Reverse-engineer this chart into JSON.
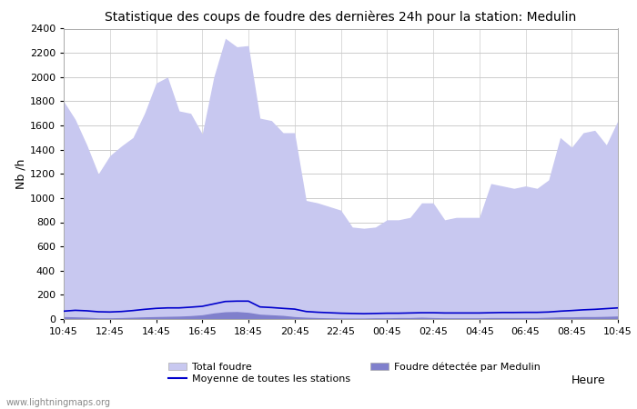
{
  "title": "Statistique des coups de foudre des dernières 24h pour la station: Medulin",
  "ylabel": "Nb /h",
  "xlabel": "Heure",
  "watermark": "www.lightningmaps.org",
  "x_labels": [
    "10:45",
    "12:45",
    "14:45",
    "16:45",
    "18:45",
    "20:45",
    "22:45",
    "00:45",
    "02:45",
    "04:45",
    "06:45",
    "08:45",
    "10:45"
  ],
  "ylim": [
    0,
    2400
  ],
  "yticks": [
    0,
    200,
    400,
    600,
    800,
    1000,
    1200,
    1400,
    1600,
    1800,
    2000,
    2200,
    2400
  ],
  "total_foudre": [
    1800,
    1650,
    1440,
    1200,
    1350,
    1430,
    1500,
    1700,
    1950,
    2000,
    1720,
    1700,
    1530,
    2000,
    2320,
    2250,
    2260,
    1660,
    1640,
    1540,
    1540,
    980,
    960,
    930,
    900,
    760,
    750,
    760,
    820,
    820,
    840,
    960,
    960,
    820,
    840,
    840,
    840,
    1120,
    1100,
    1080,
    1100,
    1080,
    1150,
    1500,
    1420,
    1540,
    1560,
    1440,
    1640
  ],
  "foudre_medulin": [
    20,
    18,
    15,
    10,
    10,
    12,
    15,
    18,
    20,
    22,
    24,
    28,
    35,
    50,
    60,
    62,
    55,
    40,
    35,
    30,
    20,
    15,
    12,
    10,
    8,
    8,
    8,
    10,
    10,
    12,
    12,
    15,
    12,
    10,
    10,
    10,
    10,
    12,
    12,
    12,
    12,
    12,
    15,
    18,
    18,
    20,
    20,
    22,
    25
  ],
  "moyenne_stations": [
    65,
    72,
    68,
    60,
    58,
    62,
    70,
    80,
    88,
    92,
    92,
    98,
    105,
    125,
    145,
    148,
    148,
    100,
    95,
    88,
    82,
    62,
    56,
    52,
    48,
    46,
    44,
    46,
    48,
    48,
    50,
    52,
    52,
    50,
    50,
    50,
    50,
    52,
    54,
    54,
    55,
    55,
    58,
    65,
    70,
    76,
    80,
    86,
    92
  ],
  "color_total": "#c8c8f0",
  "color_total_edge": "#c8c8f0",
  "color_medulin": "#8080cc",
  "color_moyenne": "#0000cc",
  "color_bg": "#ffffff",
  "color_grid": "#cccccc",
  "legend_total": "Total foudre",
  "legend_moyenne": "Moyenne de toutes les stations",
  "legend_medulin": "Foudre détectée par Medulin",
  "title_fontsize": 10,
  "tick_fontsize": 8,
  "label_fontsize": 9
}
